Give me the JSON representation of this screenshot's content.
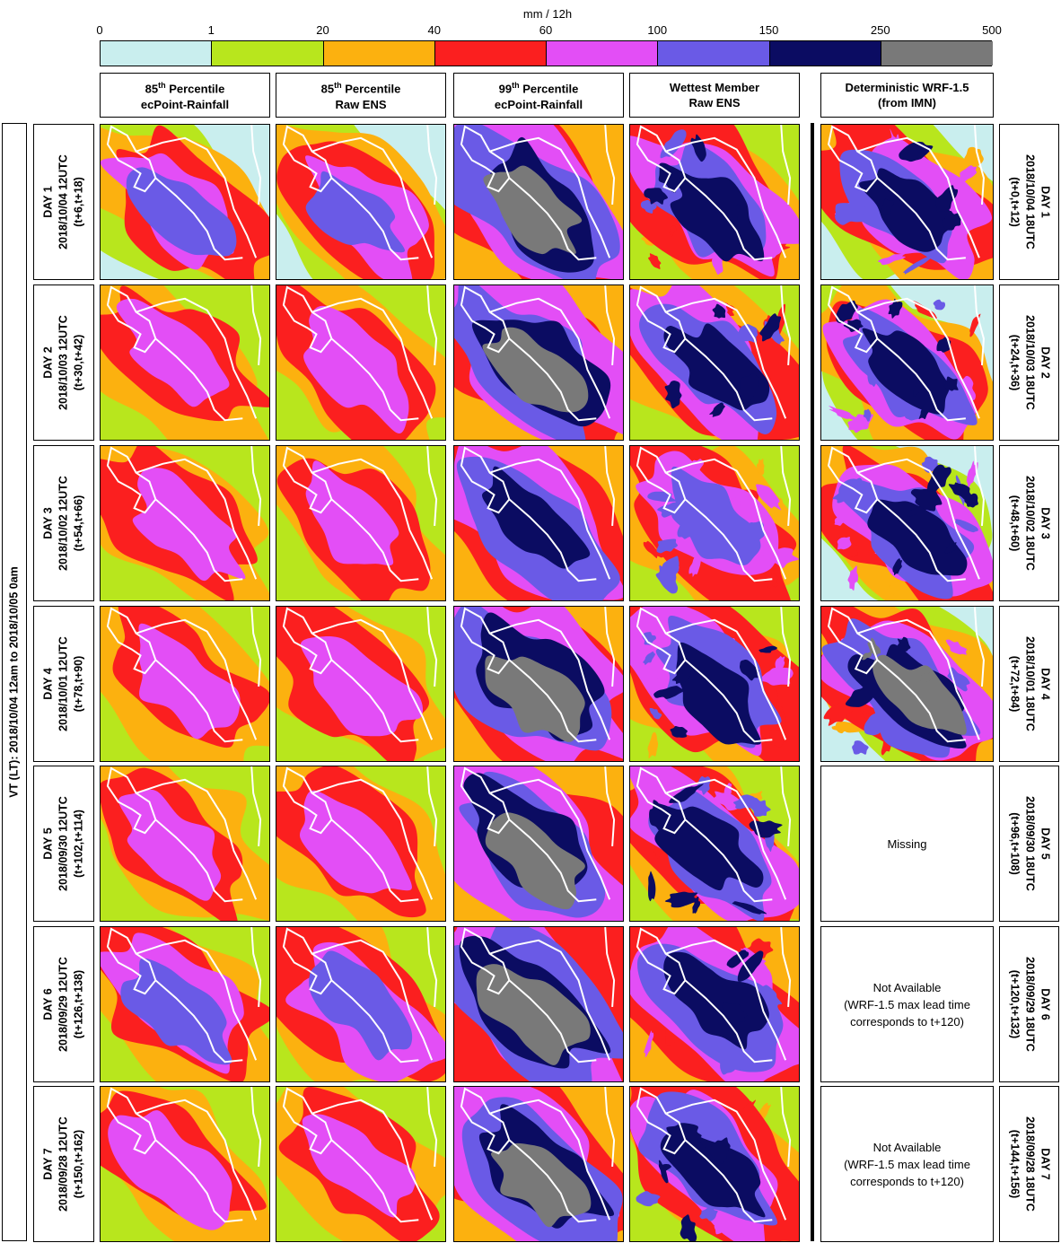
{
  "colorbar": {
    "unit": "mm / 12h",
    "ticks": [
      "0",
      "1",
      "20",
      "40",
      "60",
      "100",
      "150",
      "250",
      "500"
    ],
    "colors": [
      "#c9eeee",
      "#b8e61d",
      "#fcb10f",
      "#fb1f1f",
      "#e34ef6",
      "#6a5ae6",
      "#0b0c62",
      "#797979"
    ]
  },
  "columns": [
    {
      "line1": "85",
      "sup": "th",
      "rest": " Percentile",
      "line2": "ecPoint-Rainfall"
    },
    {
      "line1": "85",
      "sup": "th",
      "rest": " Percentile",
      "line2": "Raw ENS"
    },
    {
      "line1": "99",
      "sup": "th",
      "rest": " Percentile",
      "line2": "ecPoint-Rainfall"
    },
    {
      "line1": "Wettest Member",
      "sup": "",
      "rest": "",
      "line2": "Raw ENS"
    },
    {
      "line1": "Deterministic WRF-1.5",
      "sup": "",
      "rest": "",
      "line2": "(from IMN)"
    }
  ],
  "vt_label": "VT (LT): 2018/10/04 12am to 2018/10/05 0am",
  "rows": [
    {
      "day": "DAY 1",
      "ens_date": "2018/10/04 12UTC",
      "ens_steps": "(t+6,t+18)",
      "wrf_date": "2018/10/04 18UTC",
      "wrf_steps": "(t+0,t+12)"
    },
    {
      "day": "DAY 2",
      "ens_date": "2018/10/03 12UTC",
      "ens_steps": "(t+30,t+42)",
      "wrf_date": "2018/10/03 18UTC",
      "wrf_steps": "(t+24,t+36)"
    },
    {
      "day": "DAY 3",
      "ens_date": "2018/10/02 12UTC",
      "ens_steps": "(t+54,t+66)",
      "wrf_date": "2018/10/02 18UTC",
      "wrf_steps": "(t+48,t+60)"
    },
    {
      "day": "DAY 4",
      "ens_date": "2018/10/01 12UTC",
      "ens_steps": "(t+78,t+90)",
      "wrf_date": "2018/10/01 18UTC",
      "wrf_steps": "(t+72,t+84)"
    },
    {
      "day": "DAY 5",
      "ens_date": "2018/09/30 12UTC",
      "ens_steps": "(t+102,t+114)",
      "wrf_date": "2018/09/30 18UTC",
      "wrf_steps": "(t+96,t+108)"
    },
    {
      "day": "DAY 6",
      "ens_date": "2018/09/29 12UTC",
      "ens_steps": "(t+126,t+138)",
      "wrf_date": "2018/09/29 18UTC",
      "wrf_steps": "(t+120,t+132)"
    },
    {
      "day": "DAY 7",
      "ens_date": "2018/09/28 12UTC",
      "ens_steps": "(t+150,t+162)",
      "wrf_date": "2018/09/28 18UTC",
      "wrf_steps": "(t+144,t+156)"
    }
  ],
  "wrf_notes": {
    "missing": "Missing",
    "na_line1": "Not Available",
    "na_line2": "(WRF-1.5 max lead time",
    "na_line3": "corresponds to t+120)"
  },
  "chart_data": {
    "type": "heatmap",
    "title": "",
    "colorbar_unit": "mm / 12h",
    "colorbar_bounds": [
      0,
      1,
      20,
      40,
      60,
      100,
      150,
      250,
      500
    ],
    "columns": [
      "85th Percentile ecPoint-Rainfall",
      "85th Percentile Raw ENS",
      "99th Percentile ecPoint-Rainfall",
      "Wettest Member Raw ENS",
      "Deterministic WRF-1.5 (from IMN)"
    ],
    "rows": [
      "DAY 1",
      "DAY 2",
      "DAY 3",
      "DAY 4",
      "DAY 5",
      "DAY 6",
      "DAY 7"
    ],
    "panel_levels": [
      [
        [
          0,
          1,
          2,
          3,
          4,
          5
        ],
        [
          0,
          1,
          2,
          3,
          4,
          5
        ],
        [
          2,
          3,
          4,
          5,
          6,
          7
        ],
        [
          1,
          2,
          3,
          4,
          5,
          6
        ],
        [
          0,
          1,
          2,
          3,
          4,
          5,
          6
        ]
      ],
      [
        [
          1,
          2,
          3,
          4
        ],
        [
          1,
          2,
          3,
          4
        ],
        [
          2,
          3,
          4,
          5,
          6,
          7
        ],
        [
          1,
          2,
          3,
          4,
          5,
          6
        ],
        [
          0,
          1,
          2,
          3,
          4,
          5,
          6
        ]
      ],
      [
        [
          1,
          2,
          3,
          4
        ],
        [
          1,
          2,
          3,
          4
        ],
        [
          2,
          3,
          4,
          5,
          6
        ],
        [
          1,
          2,
          3,
          4,
          5
        ],
        [
          0,
          1,
          2,
          3,
          4,
          5,
          6
        ]
      ],
      [
        [
          1,
          2,
          3,
          4
        ],
        [
          1,
          2,
          3,
          4
        ],
        [
          2,
          3,
          4,
          5,
          6,
          7
        ],
        [
          1,
          2,
          3,
          4,
          5,
          6
        ],
        [
          0,
          1,
          2,
          3,
          4,
          5,
          6,
          7
        ]
      ],
      [
        [
          1,
          2,
          3,
          4
        ],
        [
          1,
          2,
          3,
          4
        ],
        [
          2,
          3,
          4,
          5,
          6,
          7
        ],
        [
          1,
          2,
          3,
          4,
          5,
          6
        ],
        []
      ],
      [
        [
          1,
          2,
          3,
          4,
          5
        ],
        [
          1,
          2,
          3,
          4,
          5
        ],
        [
          3,
          4,
          5,
          6,
          7
        ],
        [
          2,
          3,
          4,
          5,
          6
        ],
        []
      ],
      [
        [
          1,
          2,
          3,
          4
        ],
        [
          1,
          2,
          3,
          4
        ],
        [
          2,
          3,
          4,
          5,
          6,
          7
        ],
        [
          1,
          2,
          3,
          4,
          5,
          6
        ],
        []
      ]
    ]
  }
}
